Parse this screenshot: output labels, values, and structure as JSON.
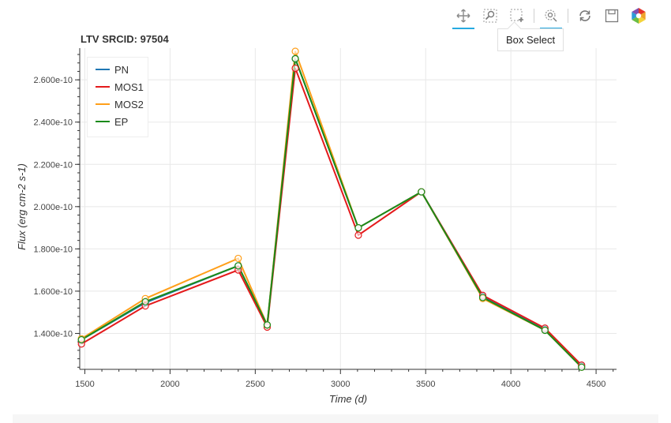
{
  "toolbar": {
    "tools": [
      {
        "name": "pan-tool-icon",
        "active": true
      },
      {
        "name": "zoom-tool-icon",
        "active": false
      },
      {
        "name": "box-select-tool-icon",
        "active": false
      },
      {
        "name": "hover-tool-icon",
        "active": true
      },
      {
        "name": "reset-tool-icon",
        "active": false
      },
      {
        "name": "save-tool-icon",
        "active": false
      },
      {
        "name": "bokeh-logo-icon",
        "active": false
      }
    ],
    "tooltip": "Box Select"
  },
  "chart_data": {
    "type": "line",
    "title": "LTV SRCID: 97504",
    "xlabel": "Time (d)",
    "ylabel": "Flux (erg cm-2 s-1)",
    "xlim": [
      1470,
      4620
    ],
    "ylim": [
      1.23e-10,
      2.75e-10
    ],
    "xticks": [
      1500,
      2000,
      2500,
      3000,
      3500,
      4000,
      4500
    ],
    "yticks": [
      1.4e-10,
      1.6e-10,
      1.8e-10,
      2e-10,
      2.2e-10,
      2.4e-10,
      2.6e-10
    ],
    "ytick_labels": [
      "1.400e-10",
      "1.600e-10",
      "1.800e-10",
      "2.000e-10",
      "2.200e-10",
      "2.400e-10",
      "2.600e-10"
    ],
    "grid": true,
    "legend_position": "top-left",
    "x": [
      1480,
      1855,
      2400,
      2570,
      2735,
      3105,
      3475,
      3835,
      4200,
      4415
    ],
    "series": [
      {
        "name": "PN",
        "color": "#1f77b4",
        "values": [
          1.37e-10,
          1.545e-10,
          1.72e-10,
          1.44e-10,
          2.7e-10,
          1.9e-10,
          2.07e-10,
          1.575e-10,
          1.42e-10,
          1.245e-10
        ]
      },
      {
        "name": "MOS1",
        "color": "#e41a1c",
        "values": [
          1.35e-10,
          1.53e-10,
          1.7e-10,
          1.43e-10,
          2.655e-10,
          1.865e-10,
          2.07e-10,
          1.58e-10,
          1.425e-10,
          1.25e-10
        ]
      },
      {
        "name": "MOS2",
        "color": "#ff9f1a",
        "values": [
          1.375e-10,
          1.565e-10,
          1.755e-10,
          1.44e-10,
          2.735e-10,
          1.9e-10,
          2.07e-10,
          1.565e-10,
          1.415e-10,
          1.24e-10
        ]
      },
      {
        "name": "EP",
        "color": "#1a8a1a",
        "values": [
          1.37e-10,
          1.55e-10,
          1.72e-10,
          1.44e-10,
          2.7e-10,
          1.9e-10,
          2.07e-10,
          1.57e-10,
          1.415e-10,
          1.24e-10
        ]
      }
    ]
  }
}
